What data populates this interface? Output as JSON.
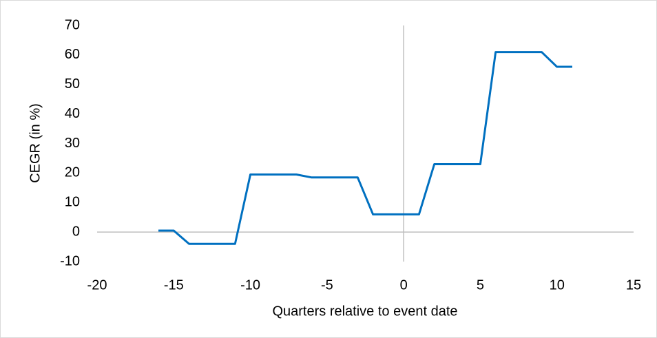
{
  "chart_data": {
    "type": "line",
    "x_label": "Quarters relative to event date",
    "y_label": "CEGR (in %)",
    "x": [
      -16,
      -15,
      -14,
      -13,
      -12,
      -11,
      -10,
      -9,
      -8,
      -7,
      -6,
      -5,
      -4,
      -3,
      -2,
      -1,
      0,
      1,
      2,
      3,
      4,
      5,
      6,
      7,
      8,
      9,
      10,
      11
    ],
    "series": [
      {
        "name": "CEGR",
        "color": "#0070c0",
        "values": [
          0.5,
          0.5,
          -4,
          -4,
          -4,
          -4,
          19.5,
          19.5,
          19.5,
          19.5,
          18.5,
          18.5,
          18.5,
          18.5,
          6,
          6,
          6,
          6,
          23,
          23,
          23,
          23,
          61,
          61,
          61,
          61,
          56,
          56
        ]
      }
    ],
    "xlim": [
      -20,
      15
    ],
    "xticks": [
      -20,
      -15,
      -10,
      -5,
      0,
      5,
      10,
      15
    ],
    "ylim": [
      -10,
      70
    ],
    "yticks": [
      -10,
      0,
      10,
      20,
      30,
      40,
      50,
      60,
      70
    ],
    "grid": false
  }
}
